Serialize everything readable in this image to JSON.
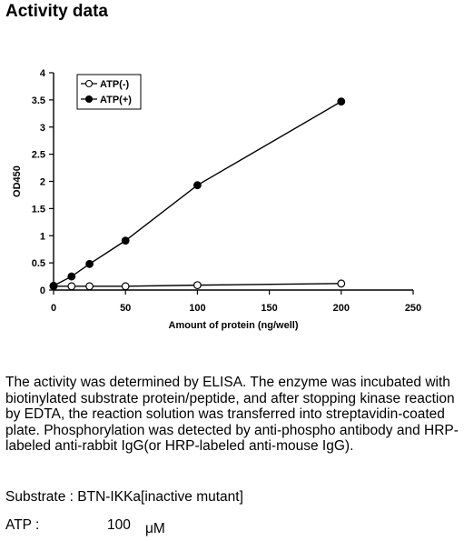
{
  "heading": "Activity data",
  "chart_data": {
    "type": "line",
    "xlabel": "Amount of protein (ng/well)",
    "ylabel": "OD450",
    "xlim": [
      0,
      250
    ],
    "ylim": [
      0,
      4
    ],
    "xticks": [
      "0",
      "50",
      "100",
      "150",
      "200",
      "250"
    ],
    "yticks": [
      "0",
      "0.5",
      "1",
      "1.5",
      "2",
      "2.5",
      "3",
      "3.5",
      "4"
    ],
    "grid": false,
    "legend_position": "top-left",
    "series": [
      {
        "name": "ATP(-)",
        "marker": "open-circle",
        "x": [
          0,
          12.5,
          25,
          50,
          100,
          200
        ],
        "y": [
          0.07,
          0.07,
          0.07,
          0.07,
          0.09,
          0.12
        ]
      },
      {
        "name": "ATP(+)",
        "marker": "filled-circle",
        "x": [
          0,
          12.5,
          25,
          50,
          100,
          200
        ],
        "y": [
          0.08,
          0.25,
          0.48,
          0.91,
          1.93,
          3.47
        ]
      }
    ]
  },
  "description": "The activity was determined by ELISA. The enzyme was incubated with biotinylated substrate protein/peptide, and after stopping kinase reaction by EDTA, the reaction solution was transferred into streptavidin-coated plate. Phosphorylation was detected by anti-phospho antibody and HRP-labeled anti-rabbit IgG(or HRP-labeled anti-mouse IgG).",
  "substrate": "Substrate : BTN-IKKa[inactive mutant]",
  "atp": {
    "label": "ATP :",
    "value": "100",
    "unit": "μM"
  }
}
